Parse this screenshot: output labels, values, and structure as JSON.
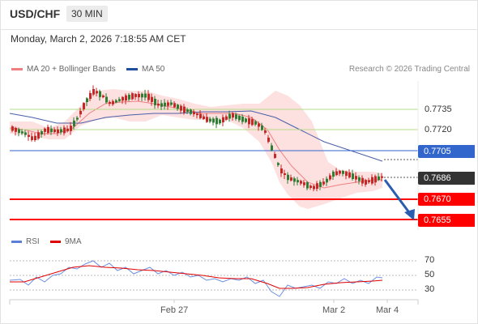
{
  "header": {
    "symbol": "USD/CHF",
    "timeframe": "30 MIN"
  },
  "datetime": "Monday, March 2, 2026 7:18:55 AM CET",
  "legend_main": {
    "ma_bb_label": "MA 20 + Bollinger Bands",
    "ma50_label": "MA 50",
    "ma_bb_color": "#f08080",
    "ma50_color": "#1f4e9c"
  },
  "credit": "Research © 2026 Trading Central",
  "levels": [
    {
      "id": "r3",
      "label": "0.7735",
      "style": "green-text"
    },
    {
      "id": "r2",
      "label": "0.7720",
      "style": "green-text"
    },
    {
      "id": "r1",
      "label": "0.7705",
      "style": "blue-tag"
    },
    {
      "id": "last",
      "label": "0.7686",
      "style": "dark-tag"
    },
    {
      "id": "s1",
      "label": "0.7670",
      "style": "red-tag"
    },
    {
      "id": "s2",
      "label": "0.7655",
      "style": "red-tag"
    }
  ],
  "legend_rsi": {
    "rsi_label": "RSI",
    "ma_label": "9MA",
    "rsi_color": "#5b7fd6",
    "ma_color": "#e00000"
  },
  "rsi_axis": [
    "70",
    "50",
    "30"
  ],
  "x_axis": [
    "Feb 27",
    "Mar 2",
    "Mar 4"
  ],
  "colors": {
    "up": "#2e7d32",
    "down": "#c62828",
    "support": "#ff0000",
    "resistance_line": "#3366cc",
    "green_line": "#a6d46a",
    "arrow": "#2a5db0"
  }
}
